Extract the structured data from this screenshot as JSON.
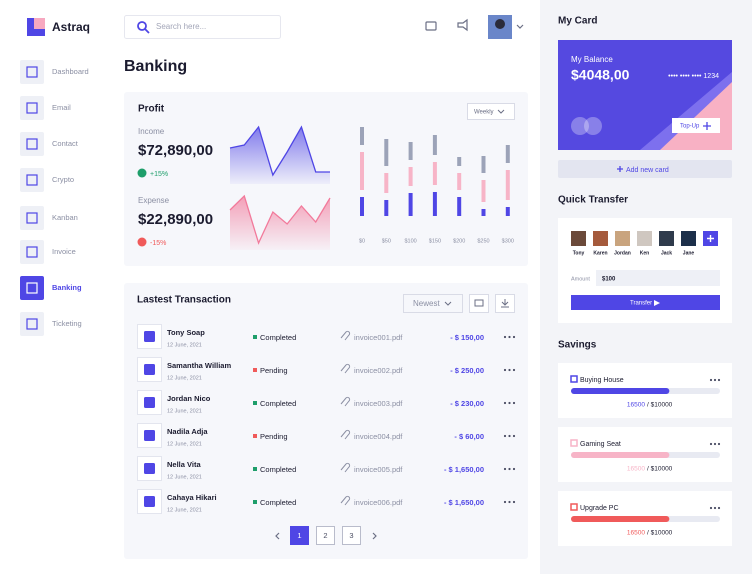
{
  "brand": "Astraq",
  "nav": {
    "items": [
      "Dashboard",
      "Email",
      "Contact",
      "Crypto",
      "Kanban",
      "Invoice",
      "Banking",
      "Ticketing"
    ],
    "active": 6
  },
  "search_placeholder": "Search here...",
  "page_title": "Banking",
  "profit": {
    "title": "Profit",
    "period": "Weekly",
    "income": {
      "label": "Income",
      "value": "$72,890,00",
      "change": "+15%",
      "chart": {
        "values": [
          36,
          39,
          57,
          9,
          32,
          57,
          12,
          12
        ],
        "ylim": [
          0,
          60
        ],
        "color": "#4f46e5"
      }
    },
    "expense": {
      "label": "Expense",
      "value": "$22,890,00",
      "change": "-15%",
      "chart": {
        "values": [
          40,
          54,
          7,
          38,
          26,
          44,
          28,
          52
        ],
        "ylim": [
          0,
          60
        ],
        "color": "#f27a9b"
      }
    },
    "bars": {
      "categories": [
        "$0",
        "$50",
        "$100",
        "$150",
        "$200",
        "$250",
        "$300"
      ],
      "ylim": [
        0,
        100
      ],
      "series": [
        {
          "color": "#4f46e5",
          "values": [
            19,
            16,
            23,
            24,
            19,
            7,
            9
          ]
        },
        {
          "color": "#f7b4c7",
          "values": [
            38,
            20,
            19,
            23,
            17,
            22,
            30
          ]
        },
        {
          "color": "#9ca3b8",
          "values": [
            18,
            27,
            18,
            20,
            9,
            17,
            18
          ]
        }
      ]
    }
  },
  "transactions": {
    "title": "Lastest Transaction",
    "sort": "Newest",
    "rows": [
      {
        "name": "Tony Soap",
        "date": "12 June, 2021",
        "status": "Completed",
        "invoice": "invoice001.pdf",
        "amount": "- $ 150,00"
      },
      {
        "name": "Samantha William",
        "date": "12 June, 2021",
        "status": "Pending",
        "invoice": "invoice002.pdf",
        "amount": "- $ 250,00"
      },
      {
        "name": "Jordan Nico",
        "date": "12 June, 2021",
        "status": "Completed",
        "invoice": "invoice003.pdf",
        "amount": "- $ 230,00"
      },
      {
        "name": "Nadila Adja",
        "date": "12 June, 2021",
        "status": "Pending",
        "invoice": "invoice004.pdf",
        "amount": "- $ 60,00"
      },
      {
        "name": "Nella Vita",
        "date": "12 June, 2021",
        "status": "Completed",
        "invoice": "invoice005.pdf",
        "amount": "- $ 1,650,00"
      },
      {
        "name": "Cahaya Hikari",
        "date": "12 June, 2021",
        "status": "Completed",
        "invoice": "invoice006.pdf",
        "amount": "- $ 1,650,00"
      }
    ],
    "pages": [
      1,
      2,
      3
    ],
    "current_page": 0
  },
  "card": {
    "title": "My Card",
    "balance_label": "My Balance",
    "balance": "$4048,00",
    "number": "•••• •••• •••• 1234",
    "topup": "Top-Up",
    "add": "Add new card"
  },
  "quick_transfer": {
    "title": "Quick Transfer",
    "contacts": [
      "Tony",
      "Karen",
      "Jordan",
      "Ken",
      "Jack",
      "Jane"
    ],
    "amount_label": "Amount",
    "amount": "$100",
    "button": "Transfer"
  },
  "savings": {
    "title": "Savings",
    "items": [
      {
        "name": "Buying House",
        "saved": "16500",
        "target": "/ $10000",
        "progress": 66,
        "color": "#4f46e5"
      },
      {
        "name": "Gaming Seat",
        "saved": "16500",
        "target": "/ $10000",
        "progress": 66,
        "color": "#f7b4c7"
      },
      {
        "name": "Upgrade PC",
        "saved": "16500",
        "target": "/ $10000",
        "progress": 66,
        "color": "#f05a5a"
      }
    ]
  }
}
